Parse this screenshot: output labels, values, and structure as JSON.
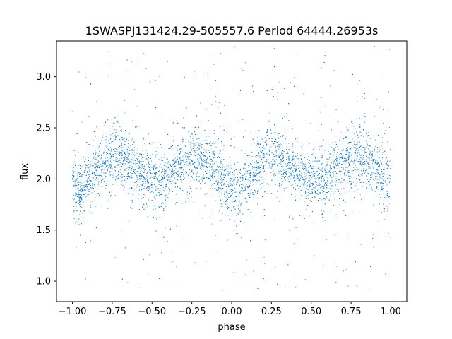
{
  "chart_data": {
    "type": "scatter",
    "title": "1SWASPJ131424.29-505557.6 Period 64444.26953s",
    "xlabel": "phase",
    "ylabel": "flux",
    "xlim": [
      -1.1,
      1.1
    ],
    "ylim": [
      0.8,
      3.35
    ],
    "xticks": [
      -1.0,
      -0.75,
      -0.5,
      -0.25,
      0.0,
      0.25,
      0.5,
      0.75,
      1.0
    ],
    "xtick_labels": [
      "−1.00",
      "−0.75",
      "−0.50",
      "−0.25",
      "0.00",
      "0.25",
      "0.50",
      "0.75",
      "1.00"
    ],
    "yticks": [
      1.0,
      1.5,
      2.0,
      2.5,
      3.0
    ],
    "ytick_labels": [
      "1.0",
      "1.5",
      "2.0",
      "2.5",
      "3.0"
    ],
    "grid": false,
    "marker_color": "#1f77b4",
    "phase_range": [
      -1.0,
      1.0
    ],
    "light_curve_profile": {
      "phase": [
        0.0,
        0.05,
        0.1,
        0.15,
        0.2,
        0.25,
        0.3,
        0.35,
        0.4,
        0.45,
        0.5,
        0.55,
        0.6,
        0.65,
        0.7,
        0.75,
        0.8,
        0.85,
        0.9,
        0.95,
        1.0
      ],
      "flux": [
        1.92,
        1.88,
        1.98,
        2.1,
        2.18,
        2.22,
        2.22,
        2.18,
        2.1,
        2.03,
        2.0,
        1.98,
        2.02,
        2.1,
        2.17,
        2.2,
        2.2,
        2.17,
        2.1,
        2.0,
        1.92
      ]
    },
    "core_scatter_sd": 0.13,
    "outlier_range": [
      0.9,
      3.3
    ]
  }
}
